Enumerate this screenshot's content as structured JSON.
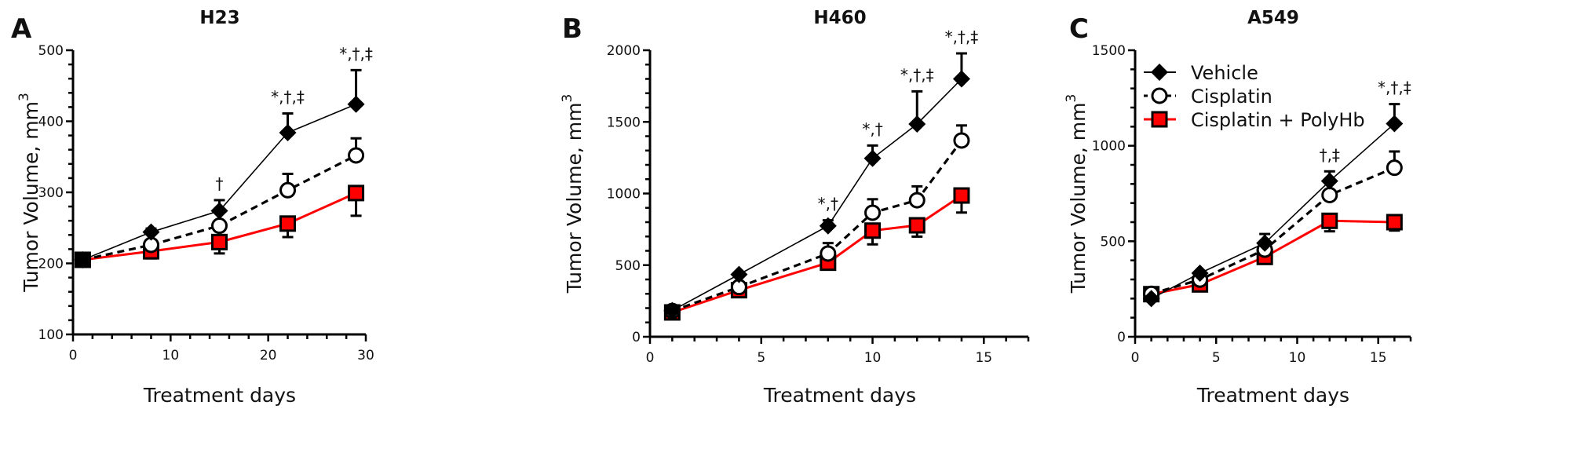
{
  "legend": {
    "placement": "top-left of panel C",
    "entries": [
      {
        "name": "Vehicle",
        "marker": "diamond-filled",
        "color": "#000000",
        "line": "solid-thin"
      },
      {
        "name": "Cisplatin",
        "marker": "circle-open",
        "color": "#000000",
        "line": "dashed"
      },
      {
        "name": "Cisplatin + PolyHb",
        "marker": "square-red",
        "color": "#ff0000",
        "line": "solid-red"
      }
    ]
  },
  "chart_data": [
    {
      "type": "line",
      "panel_letter": "A",
      "title": "H23",
      "xlabel": "Treatment days",
      "ylabel": "Tumor Volume, mm",
      "ylabel_superscript": "3",
      "xlim": [
        0,
        30
      ],
      "ylim": [
        100,
        500
      ],
      "x_ticks": [
        0,
        10,
        20,
        30
      ],
      "x_minor_step": 2,
      "y_ticks": [
        100,
        200,
        300,
        400,
        500
      ],
      "y_minor_step": 20,
      "grid": false,
      "x": [
        1,
        8,
        15,
        22,
        29
      ],
      "series": [
        {
          "name": "Vehicle",
          "values": [
            205,
            244,
            274,
            384,
            424
          ],
          "error_upper": [
            210,
            249,
            289,
            411,
            472
          ]
        },
        {
          "name": "Cisplatin",
          "values": [
            205,
            226,
            253,
            303,
            352
          ],
          "error_upper": [
            208,
            229,
            256,
            326,
            376
          ]
        },
        {
          "name": "Cisplatin + PolyHb",
          "values": [
            205,
            217,
            230,
            256,
            299
          ],
          "error_lower": [
            201,
            207,
            214,
            237,
            267
          ]
        }
      ],
      "annotations": [
        {
          "x": 15,
          "text": "†"
        },
        {
          "x": 22,
          "text": "*,†,‡"
        },
        {
          "x": 29,
          "text": "*,†,‡"
        }
      ]
    },
    {
      "type": "line",
      "panel_letter": "B",
      "title": "H460",
      "xlabel": "Treatment days",
      "ylabel": "Tumor Volume, mm",
      "ylabel_superscript": "3",
      "xlim": [
        0,
        17
      ],
      "ylim": [
        0,
        2000
      ],
      "x_ticks": [
        0,
        5,
        10,
        15
      ],
      "x_minor_step": 1,
      "y_ticks": [
        0,
        500,
        1000,
        1500,
        2000
      ],
      "y_minor_step": 100,
      "grid": false,
      "x": [
        1,
        4,
        8,
        10,
        12,
        14
      ],
      "series": [
        {
          "name": "Vehicle",
          "values": [
            183,
            435,
            774,
            1245,
            1485,
            1800
          ],
          "error_upper": [
            190,
            445,
            813,
            1335,
            1713,
            1978
          ]
        },
        {
          "name": "Cisplatin",
          "values": [
            180,
            347,
            581,
            866,
            953,
            1370
          ],
          "error_upper": [
            185,
            355,
            654,
            960,
            1050,
            1475
          ]
        },
        {
          "name": "Cisplatin + PolyHb",
          "values": [
            170,
            325,
            517,
            741,
            778,
            986
          ],
          "error_lower": [
            165,
            318,
            505,
            645,
            699,
            867
          ]
        }
      ],
      "annotations": [
        {
          "x": 8,
          "text": "*,†"
        },
        {
          "x": 10,
          "text": "*,†"
        },
        {
          "x": 12,
          "text": "*,†,‡"
        },
        {
          "x": 14,
          "text": "*,†,‡"
        }
      ]
    },
    {
      "type": "line",
      "panel_letter": "C",
      "title": "A549",
      "xlabel": "Treatment days",
      "ylabel": "Tumor Volume, mm",
      "ylabel_superscript": "3",
      "xlim": [
        0,
        17
      ],
      "ylim": [
        0,
        1500
      ],
      "x_ticks": [
        0,
        5,
        10,
        15
      ],
      "x_minor_step": 1,
      "y_ticks": [
        0,
        500,
        1000,
        1500
      ],
      "y_minor_step": 100,
      "grid": false,
      "x": [
        1,
        4,
        8,
        12,
        16
      ],
      "series": [
        {
          "name": "Vehicle",
          "values": [
            200,
            333,
            490,
            815,
            1116
          ],
          "error_upper": [
            205,
            340,
            538,
            866,
            1218
          ]
        },
        {
          "name": "Cisplatin",
          "values": [
            225,
            299,
            456,
            742,
            885
          ],
          "error_upper": [
            228,
            305,
            462,
            750,
            970
          ]
        },
        {
          "name": "Cisplatin + PolyHb",
          "values": [
            223,
            274,
            418,
            607,
            600
          ],
          "error_lower": [
            218,
            268,
            383,
            552,
            556
          ]
        }
      ],
      "annotations": [
        {
          "x": 12,
          "text": "†,‡"
        },
        {
          "x": 16,
          "text": "*,†,‡"
        }
      ]
    }
  ]
}
